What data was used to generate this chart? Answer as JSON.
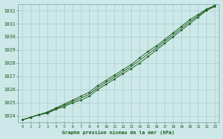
{
  "title": "Graphe pression niveau de la mer (hPa)",
  "bg_color": "#cce8e8",
  "plot_bg_color": "#cce8e8",
  "grid_color": "#aacaca",
  "line_color": "#1a5c1a",
  "x_min": 0,
  "x_max": 23,
  "y_min": 1023.5,
  "y_max": 1032.5,
  "y_ticks": [
    1024,
    1025,
    1026,
    1027,
    1028,
    1029,
    1030,
    1031,
    1032
  ],
  "series1": [
    1023.7,
    1023.9,
    1024.1,
    1024.2,
    1024.5,
    1024.7,
    1025.0,
    1025.2,
    1025.5,
    1026.0,
    1026.4,
    1026.8,
    1027.2,
    1027.6,
    1028.0,
    1028.5,
    1029.0,
    1029.5,
    1030.0,
    1030.5,
    1031.0,
    1031.5,
    1032.0,
    1032.3
  ],
  "series2": [
    1023.7,
    1023.9,
    1024.1,
    1024.3,
    1024.6,
    1024.9,
    1025.2,
    1025.5,
    1025.8,
    1026.3,
    1026.7,
    1027.1,
    1027.5,
    1027.9,
    1028.4,
    1028.9,
    1029.3,
    1029.8,
    1030.3,
    1030.8,
    1031.3,
    1031.7,
    1032.1,
    1032.4
  ],
  "series3": [
    1023.7,
    1023.9,
    1024.1,
    1024.25,
    1024.55,
    1024.8,
    1025.1,
    1025.35,
    1025.65,
    1026.15,
    1026.55,
    1026.95,
    1027.35,
    1027.75,
    1028.2,
    1028.7,
    1029.15,
    1029.65,
    1030.15,
    1030.65,
    1031.15,
    1031.6,
    1032.05,
    1032.35
  ],
  "title_fontsize": 5.5,
  "tick_fontsize": 5,
  "xlabel_fontsize": 5
}
